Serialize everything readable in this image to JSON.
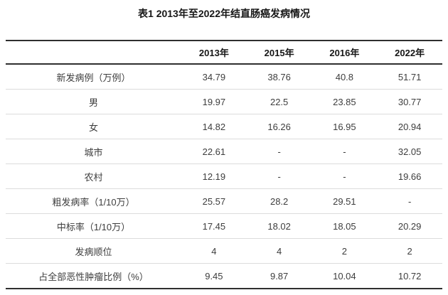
{
  "page": {
    "title": "表1 2013年至2022年结直肠癌发病情况"
  },
  "chart_data": {
    "type": "table",
    "title": "表1 2013年至2022年结直肠癌发病情况",
    "columns": [
      "",
      "2013年",
      "2015年",
      "2016年",
      "2022年"
    ],
    "rows": [
      [
        "新发病例（万例）",
        "34.79",
        "38.76",
        "40.8",
        "51.71"
      ],
      [
        "男",
        "19.97",
        "22.5",
        "23.85",
        "30.77"
      ],
      [
        "女",
        "14.82",
        "16.26",
        "16.95",
        "20.94"
      ],
      [
        "城市",
        "22.61",
        "-",
        "-",
        "32.05"
      ],
      [
        "农村",
        "12.19",
        "-",
        "-",
        "19.66"
      ],
      [
        "粗发病率（1/10万）",
        "25.57",
        "28.2",
        "29.51",
        "-"
      ],
      [
        "中标率（1/10万）",
        "17.45",
        "18.02",
        "18.05",
        "20.29"
      ],
      [
        "发病顺位",
        "4",
        "4",
        "2",
        "2"
      ],
      [
        "占全部恶性肿瘤比例（%）",
        "9.45",
        "9.87",
        "10.04",
        "10.72"
      ]
    ],
    "layout": {
      "legend": "none",
      "grid": "horizontal-rules-only"
    },
    "colors": {
      "background": "#ffffff",
      "border_strong": "#2f2f2f",
      "border_light": "#dcdcdc",
      "title_text": "#161616",
      "cell_text": "#3d3d3d"
    }
  }
}
